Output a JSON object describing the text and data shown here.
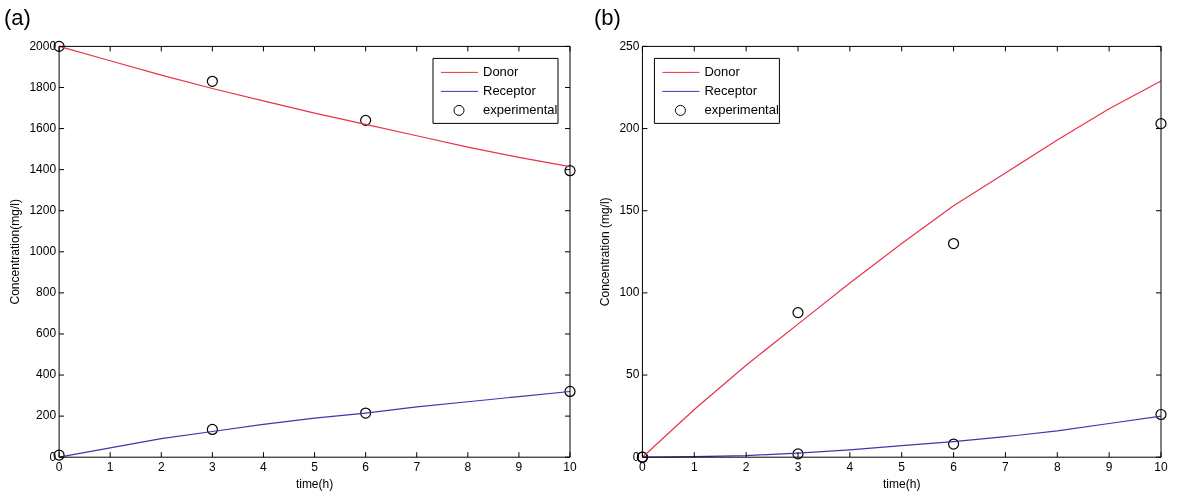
{
  "chart_data": [
    {
      "type": "line",
      "title": "(a)",
      "xlabel": "time(h)",
      "ylabel": "Concentration(mg/l)",
      "xlim": [
        0,
        10
      ],
      "xticks": [
        0,
        1,
        2,
        3,
        4,
        5,
        6,
        7,
        8,
        9,
        10
      ],
      "ylim": [
        0,
        2000
      ],
      "yticks": [
        0,
        200,
        400,
        600,
        800,
        1000,
        1200,
        1400,
        1600,
        1800,
        2000
      ],
      "legend": "top right",
      "grid": false,
      "series": [
        {
          "name": "Donor",
          "type": "line",
          "marker": "none",
          "color": "#e8334a",
          "x": [
            0,
            1,
            2,
            3,
            4,
            5,
            6,
            7,
            8,
            9,
            10
          ],
          "values": [
            2000,
            1930,
            1860,
            1795,
            1735,
            1675,
            1620,
            1565,
            1510,
            1460,
            1415
          ]
        },
        {
          "name": "Receptor",
          "type": "line",
          "marker": "none",
          "color": "#3a3aaa",
          "x": [
            0,
            1,
            2,
            3,
            4,
            5,
            6,
            7,
            8,
            9,
            10
          ],
          "values": [
            0,
            45,
            90,
            125,
            160,
            190,
            215,
            245,
            270,
            295,
            320
          ]
        },
        {
          "name": "experimental",
          "type": "scatter",
          "marker": "circle",
          "color": "#000000",
          "x": [
            0,
            3,
            6,
            10,
            0,
            3,
            6,
            10
          ],
          "values": [
            2000,
            1830,
            1640,
            1395,
            10,
            135,
            215,
            320
          ]
        }
      ]
    },
    {
      "type": "line",
      "title": "(b)",
      "xlabel": "time(h)",
      "ylabel": "Concentration (mg/l)",
      "xlim": [
        0,
        10
      ],
      "xticks": [
        0,
        1,
        2,
        3,
        4,
        5,
        6,
        7,
        8,
        9,
        10
      ],
      "ylim": [
        0,
        250
      ],
      "yticks": [
        0,
        50,
        100,
        150,
        200,
        250
      ],
      "legend": "top left",
      "grid": false,
      "series": [
        {
          "name": "Donor",
          "type": "line",
          "marker": "none",
          "color": "#e8334a",
          "x": [
            0,
            1,
            2,
            3,
            4,
            5,
            6,
            7,
            8,
            9,
            10
          ],
          "values": [
            0,
            29,
            56,
            81,
            106,
            130,
            153,
            173,
            193,
            212,
            229
          ]
        },
        {
          "name": "Receptor",
          "type": "line",
          "marker": "none",
          "color": "#3a3aaa",
          "x": [
            0,
            1,
            2,
            3,
            4,
            5,
            6,
            7,
            8,
            9,
            10
          ],
          "values": [
            0,
            0.3,
            1,
            2.5,
            4.5,
            7,
            9.5,
            12.5,
            16,
            20.5,
            25
          ]
        },
        {
          "name": "experimental",
          "type": "scatter",
          "marker": "circle",
          "color": "#000000",
          "x": [
            0,
            3,
            6,
            10,
            0,
            3,
            6,
            10
          ],
          "values": [
            0,
            88,
            130,
            203,
            0,
            2,
            8,
            26
          ]
        }
      ]
    }
  ]
}
